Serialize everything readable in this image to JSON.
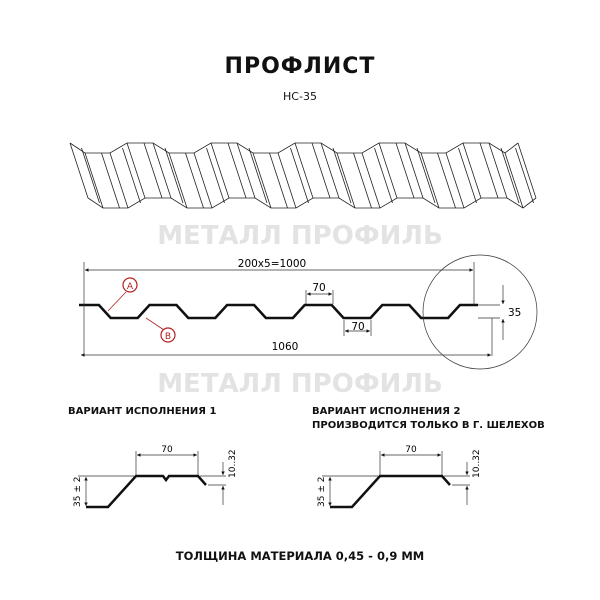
{
  "title": "ПРОФЛИСТ",
  "subtitle": "НС-35",
  "watermark": "МЕТАЛЛ ПРОФИЛЬ",
  "main_profile": {
    "pitch_label": "200х5=1000",
    "width_label": "1060",
    "top_width_label": "70",
    "bottom_width_label": "70",
    "height_label": "35",
    "marker_a": "A",
    "marker_b": "B",
    "marker_color": "#b22222"
  },
  "variant1": {
    "caption": "ВАРИАНТ ИСПОЛНЕНИЯ 1",
    "width_label": "70",
    "height_label": "35 ± 2",
    "edge_label": "10..32"
  },
  "variant2": {
    "caption_line1": "ВАРИАНТ ИСПОЛНЕНИЯ 2",
    "caption_line2": "ПРОИЗВОДИТСЯ ТОЛЬКО В Г. ШЕЛЕХОВ",
    "width_label": "70",
    "height_label": "35 ± 2",
    "edge_label": "10..32"
  },
  "footer": "ТОЛЩИНА МАТЕРИАЛА 0,45 - 0,9 ММ"
}
